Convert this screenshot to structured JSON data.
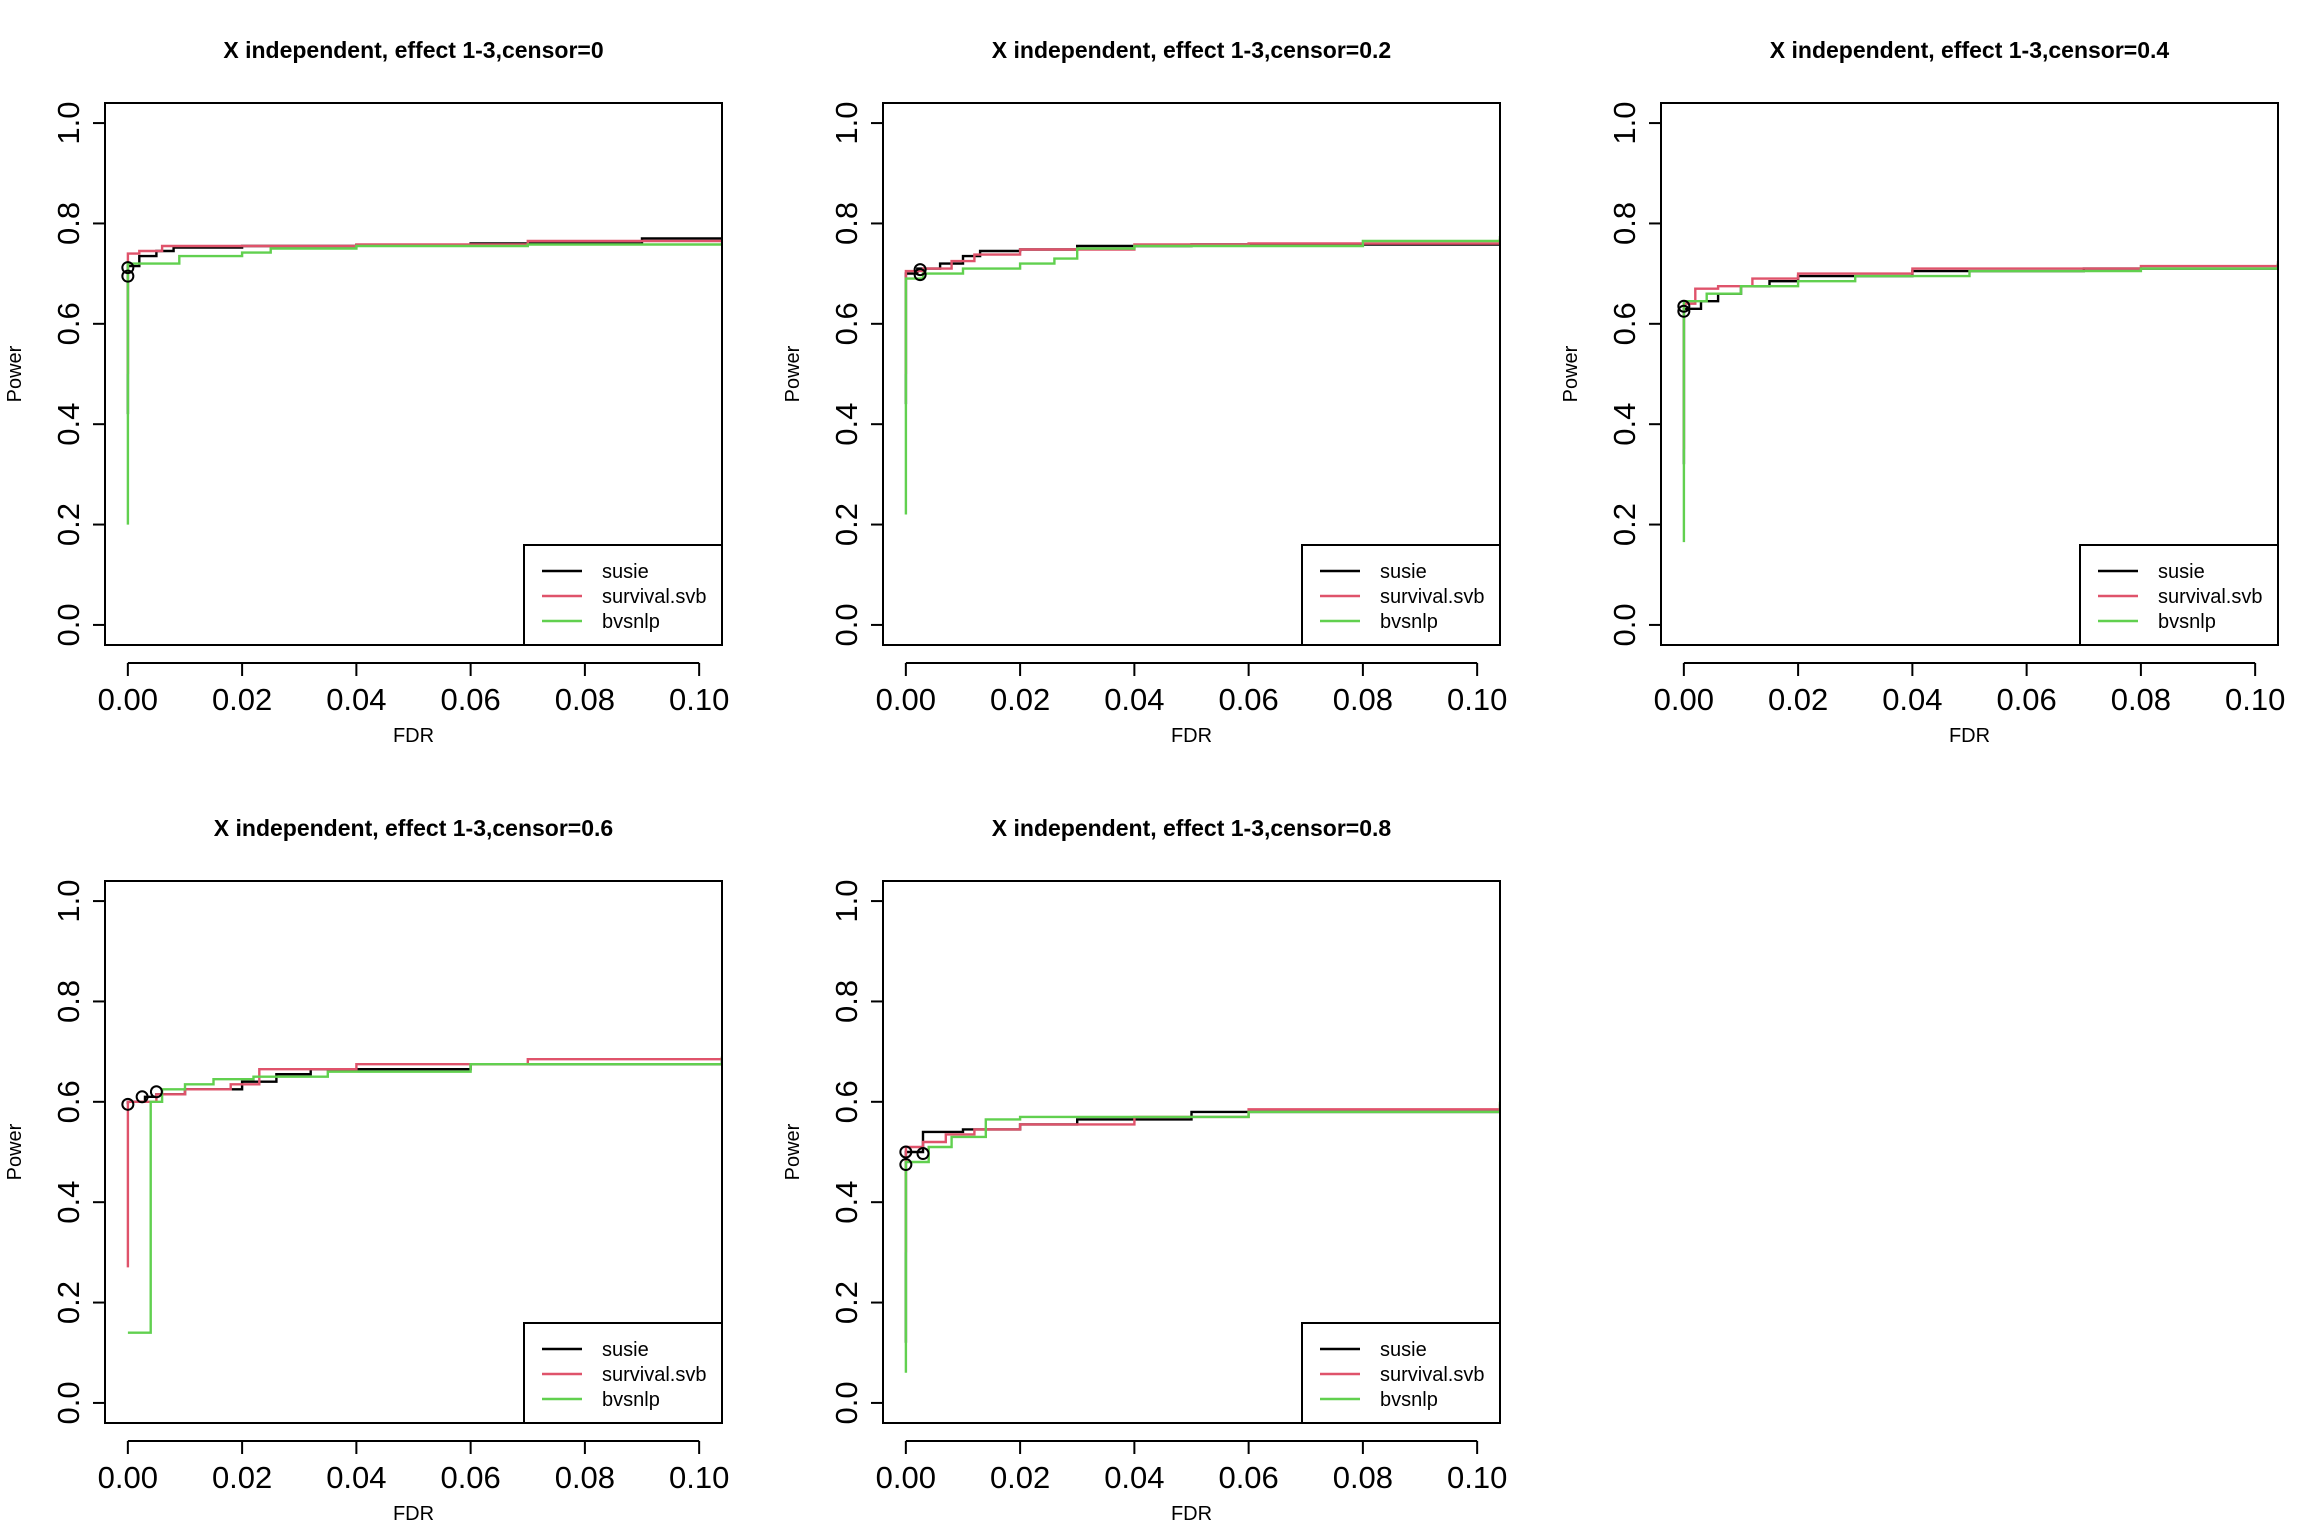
{
  "series_colors": {
    "susie": "#000000",
    "survival.svb": "#DF536B",
    "bvsnlp": "#61D04F"
  },
  "chart_data": [
    {
      "type": "line",
      "title": "X independent, effect 1-3,censor=0",
      "xlabel": "FDR",
      "ylabel": "Power",
      "xlim": [
        -0.004,
        0.104
      ],
      "ylim": [
        -0.04,
        1.04
      ],
      "xticks": [
        0,
        0.02,
        0.04,
        0.06,
        0.08,
        0.1
      ],
      "xtick_labels": [
        "0.00",
        "0.02",
        "0.04",
        "0.06",
        "0.08",
        "0.10"
      ],
      "yticks": [
        0,
        0.2,
        0.4,
        0.6,
        0.8,
        1
      ],
      "ytick_labels": [
        "0.0",
        "0.2",
        "0.4",
        "0.6",
        "0.8",
        "1.0"
      ],
      "grid": false,
      "legend": "bottom-right",
      "step": true,
      "series": [
        {
          "name": "susie",
          "x": [
            0,
            0,
            0.002,
            0.005,
            0.008,
            0.02,
            0.04,
            0.06,
            0.09,
            0.104
          ],
          "y": [
            0.42,
            0.715,
            0.735,
            0.745,
            0.752,
            0.755,
            0.757,
            0.76,
            0.77,
            0.772
          ]
        },
        {
          "name": "survival.svb",
          "x": [
            0,
            0,
            0.002,
            0.006,
            0.02,
            0.04,
            0.07,
            0.104
          ],
          "y": [
            0.5,
            0.74,
            0.745,
            0.755,
            0.755,
            0.758,
            0.765,
            0.768
          ]
        },
        {
          "name": "bvsnlp",
          "x": [
            0,
            0,
            0.003,
            0.009,
            0.02,
            0.025,
            0.04,
            0.07,
            0.104
          ],
          "y": [
            0.2,
            0.72,
            0.72,
            0.735,
            0.742,
            0.75,
            0.755,
            0.758,
            0.763
          ]
        }
      ],
      "points": [
        {
          "x": 0,
          "y": 0.712
        },
        {
          "x": 0,
          "y": 0.695
        }
      ]
    },
    {
      "type": "line",
      "title": "X independent, effect 1-3,censor=0.2",
      "xlabel": "FDR",
      "ylabel": "Power",
      "xlim": [
        -0.004,
        0.104
      ],
      "ylim": [
        -0.04,
        1.04
      ],
      "xticks": [
        0,
        0.02,
        0.04,
        0.06,
        0.08,
        0.1
      ],
      "xtick_labels": [
        "0.00",
        "0.02",
        "0.04",
        "0.06",
        "0.08",
        "0.10"
      ],
      "yticks": [
        0,
        0.2,
        0.4,
        0.6,
        0.8,
        1
      ],
      "ytick_labels": [
        "0.0",
        "0.2",
        "0.4",
        "0.6",
        "0.8",
        "1.0"
      ],
      "grid": false,
      "legend": "bottom-right",
      "step": true,
      "series": [
        {
          "name": "susie",
          "x": [
            0,
            0,
            0.002,
            0.006,
            0.01,
            0.013,
            0.02,
            0.03,
            0.05,
            0.104
          ],
          "y": [
            0.44,
            0.7,
            0.71,
            0.72,
            0.735,
            0.745,
            0.748,
            0.755,
            0.758,
            0.765
          ]
        },
        {
          "name": "survival.svb",
          "x": [
            0,
            0,
            0.003,
            0.008,
            0.012,
            0.02,
            0.04,
            0.06,
            0.104
          ],
          "y": [
            0.5,
            0.705,
            0.71,
            0.725,
            0.738,
            0.748,
            0.758,
            0.76,
            0.77
          ]
        },
        {
          "name": "bvsnlp",
          "x": [
            0,
            0,
            0.003,
            0.01,
            0.02,
            0.026,
            0.03,
            0.04,
            0.08,
            0.104
          ],
          "y": [
            0.22,
            0.69,
            0.7,
            0.71,
            0.72,
            0.73,
            0.75,
            0.755,
            0.765,
            0.775
          ]
        }
      ],
      "points": [
        {
          "x": 0.0025,
          "y": 0.708
        },
        {
          "x": 0.0025,
          "y": 0.698
        }
      ]
    },
    {
      "type": "line",
      "title": "X independent, effect 1-3,censor=0.4",
      "xlabel": "FDR",
      "ylabel": "Power",
      "xlim": [
        -0.004,
        0.104
      ],
      "ylim": [
        -0.04,
        1.04
      ],
      "xticks": [
        0,
        0.02,
        0.04,
        0.06,
        0.08,
        0.1
      ],
      "xtick_labels": [
        "0.00",
        "0.02",
        "0.04",
        "0.06",
        "0.08",
        "0.10"
      ],
      "yticks": [
        0,
        0.2,
        0.4,
        0.6,
        0.8,
        1
      ],
      "ytick_labels": [
        "0.0",
        "0.2",
        "0.4",
        "0.6",
        "0.8",
        "1.0"
      ],
      "grid": false,
      "legend": "bottom-right",
      "step": true,
      "series": [
        {
          "name": "susie",
          "x": [
            0,
            0,
            0.003,
            0.006,
            0.01,
            0.015,
            0.02,
            0.04,
            0.07,
            0.104
          ],
          "y": [
            0.32,
            0.63,
            0.645,
            0.66,
            0.675,
            0.685,
            0.695,
            0.705,
            0.71,
            0.72
          ]
        },
        {
          "name": "survival.svb",
          "x": [
            0,
            0,
            0.002,
            0.006,
            0.012,
            0.02,
            0.04,
            0.08,
            0.104
          ],
          "y": [
            0.35,
            0.64,
            0.67,
            0.675,
            0.69,
            0.7,
            0.71,
            0.715,
            0.725
          ]
        },
        {
          "name": "bvsnlp",
          "x": [
            0,
            0,
            0.004,
            0.01,
            0.02,
            0.03,
            0.05,
            0.08,
            0.104
          ],
          "y": [
            0.165,
            0.645,
            0.66,
            0.675,
            0.685,
            0.695,
            0.705,
            0.71,
            0.72
          ]
        }
      ],
      "points": [
        {
          "x": 0,
          "y": 0.635
        },
        {
          "x": 0,
          "y": 0.625
        }
      ]
    },
    {
      "type": "line",
      "title": "X independent, effect 1-3,censor=0.6",
      "xlabel": "FDR",
      "ylabel": "Power",
      "xlim": [
        -0.004,
        0.104
      ],
      "ylim": [
        -0.04,
        1.04
      ],
      "xticks": [
        0,
        0.02,
        0.04,
        0.06,
        0.08,
        0.1
      ],
      "xtick_labels": [
        "0.00",
        "0.02",
        "0.04",
        "0.06",
        "0.08",
        "0.10"
      ],
      "yticks": [
        0,
        0.2,
        0.4,
        0.6,
        0.8,
        1
      ],
      "ytick_labels": [
        "0.0",
        "0.2",
        "0.4",
        "0.6",
        "0.8",
        "1.0"
      ],
      "grid": false,
      "legend": "bottom-right",
      "step": true,
      "series": [
        {
          "name": "susie",
          "x": [
            0,
            0,
            0.003,
            0.005,
            0.01,
            0.02,
            0.026,
            0.032,
            0.06,
            0.104
          ],
          "y": [
            0.595,
            0.6,
            0.61,
            0.615,
            0.625,
            0.64,
            0.655,
            0.665,
            0.675,
            0.685
          ]
        },
        {
          "name": "survival.svb",
          "x": [
            0,
            0,
            0.005,
            0.01,
            0.018,
            0.023,
            0.04,
            0.07,
            0.104
          ],
          "y": [
            0.27,
            0.6,
            0.615,
            0.625,
            0.635,
            0.665,
            0.675,
            0.685,
            0.69
          ]
        },
        {
          "name": "bvsnlp",
          "x": [
            0,
            0.004,
            0.006,
            0.01,
            0.015,
            0.022,
            0.035,
            0.06,
            0.104
          ],
          "y": [
            0.14,
            0.6,
            0.625,
            0.635,
            0.645,
            0.65,
            0.66,
            0.675,
            0.69
          ]
        }
      ],
      "points": [
        {
          "x": 0,
          "y": 0.595
        },
        {
          "x": 0.0025,
          "y": 0.61
        },
        {
          "x": 0.005,
          "y": 0.62
        }
      ]
    },
    {
      "type": "line",
      "title": "X independent, effect 1-3,censor=0.8",
      "xlabel": "FDR",
      "ylabel": "Power",
      "xlim": [
        -0.004,
        0.104
      ],
      "ylim": [
        -0.04,
        1.04
      ],
      "xticks": [
        0,
        0.02,
        0.04,
        0.06,
        0.08,
        0.1
      ],
      "xtick_labels": [
        "0.00",
        "0.02",
        "0.04",
        "0.06",
        "0.08",
        "0.10"
      ],
      "yticks": [
        0,
        0.2,
        0.4,
        0.6,
        0.8,
        1
      ],
      "ytick_labels": [
        "0.0",
        "0.2",
        "0.4",
        "0.6",
        "0.8",
        "1.0"
      ],
      "grid": false,
      "legend": "bottom-right",
      "step": true,
      "series": [
        {
          "name": "susie",
          "x": [
            0,
            0,
            0.003,
            0.01,
            0.02,
            0.03,
            0.05,
            0.104
          ],
          "y": [
            0.12,
            0.5,
            0.54,
            0.545,
            0.555,
            0.565,
            0.58,
            0.585
          ]
        },
        {
          "name": "survival.svb",
          "x": [
            0,
            0,
            0.003,
            0.007,
            0.012,
            0.02,
            0.04,
            0.06,
            0.104
          ],
          "y": [
            0.3,
            0.51,
            0.52,
            0.535,
            0.545,
            0.555,
            0.57,
            0.585,
            0.595
          ]
        },
        {
          "name": "bvsnlp",
          "x": [
            0,
            0,
            0.004,
            0.008,
            0.014,
            0.02,
            0.03,
            0.06,
            0.104
          ],
          "y": [
            0.06,
            0.48,
            0.51,
            0.53,
            0.565,
            0.57,
            0.57,
            0.58,
            0.6
          ]
        }
      ],
      "points": [
        {
          "x": 0,
          "y": 0.5
        },
        {
          "x": 0,
          "y": 0.475
        },
        {
          "x": 0.003,
          "y": 0.497
        }
      ]
    }
  ]
}
